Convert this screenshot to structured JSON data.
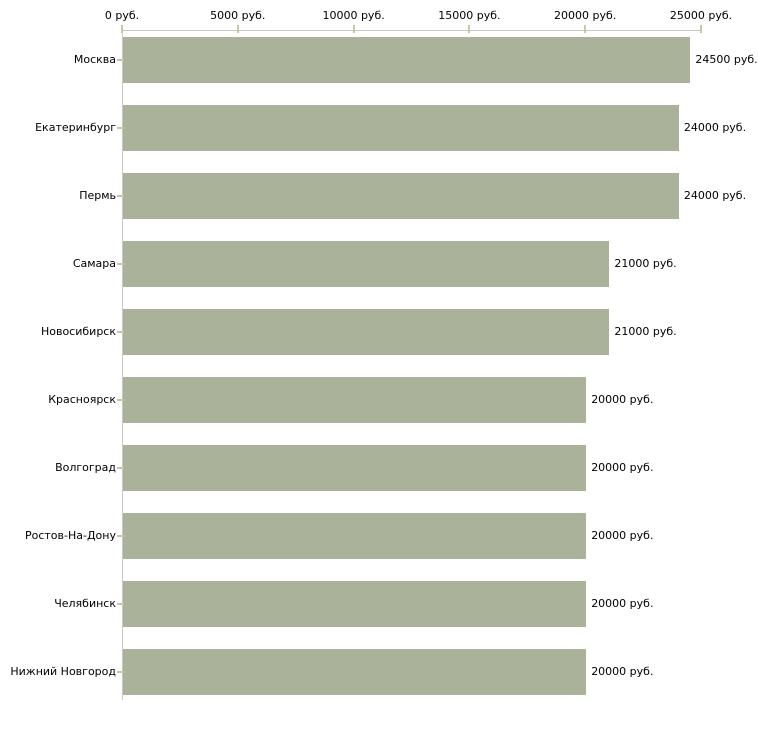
{
  "chart_data": {
    "type": "bar",
    "orientation": "horizontal",
    "title": "",
    "unit": "руб.",
    "categories": [
      "Москва",
      "Екатеринбург",
      "Пермь",
      "Самара",
      "Новосибирск",
      "Красноярск",
      "Волгоград",
      "Ростов-На-Дону",
      "Челябинск",
      "Нижний Новгород"
    ],
    "values": [
      24500,
      24000,
      24000,
      21000,
      21000,
      20000,
      20000,
      20000,
      20000,
      20000
    ],
    "value_labels": [
      "24500 руб.",
      "24000 руб.",
      "24000 руб.",
      "21000 руб.",
      "21000 руб.",
      "20000 руб.",
      "20000 руб.",
      "20000 руб.",
      "20000 руб.",
      "20000 руб."
    ],
    "x_axis": {
      "position": "top",
      "tick_values": [
        0,
        5000,
        10000,
        15000,
        20000,
        25000
      ],
      "tick_labels": [
        "0 руб.",
        "5000 руб.",
        "10000 руб.",
        "15000 руб.",
        "20000 руб.",
        "25000 руб."
      ]
    },
    "xlim": [
      0,
      25000
    ],
    "grid": false,
    "legend": false,
    "colors": {
      "bar": "#abb29a",
      "axis_line": "#c6c6c6",
      "tick": "#c8c89e",
      "text": "#000000",
      "background": "#ffffff"
    }
  }
}
